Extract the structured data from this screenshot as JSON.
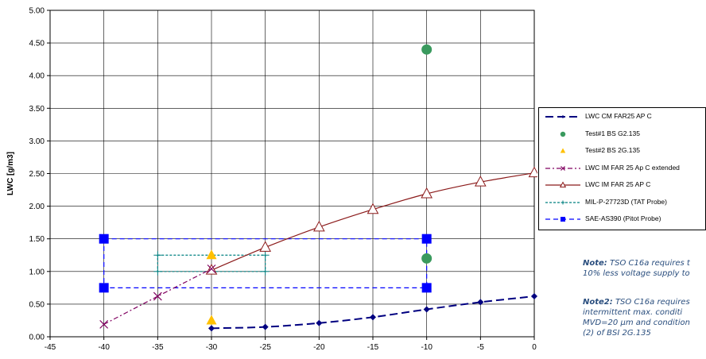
{
  "chart_data": {
    "type": "line",
    "title": "",
    "xlabel": "",
    "ylabel": "LWC [g/m3]",
    "xlim": [
      -45,
      0
    ],
    "ylim": [
      0,
      5
    ],
    "x_ticks": [
      "-45",
      "-40",
      "-35",
      "-30",
      "-25",
      "-20",
      "-15",
      "-10",
      "-5",
      "0"
    ],
    "y_ticks": [
      "0.00",
      "0.50",
      "1.00",
      "1.50",
      "2.00",
      "2.50",
      "3.00",
      "3.50",
      "4.00",
      "4.50",
      "5.00"
    ],
    "grid": true,
    "legend_position": "right",
    "series": [
      {
        "name": "LWC CM FAR25 AP C",
        "color": "#000080",
        "marker": "diamond",
        "dash": "10,5",
        "smooth": true,
        "points": [
          [
            -30,
            0.13
          ],
          [
            -25,
            0.15
          ],
          [
            -20,
            0.21
          ],
          [
            -15,
            0.3
          ],
          [
            -10,
            0.42
          ],
          [
            -5,
            0.53
          ],
          [
            0,
            0.62
          ]
        ]
      },
      {
        "name": "Test#1 BS G2.135",
        "color": "#3a9a5e",
        "marker": "circle",
        "line": false,
        "points": [
          [
            -10,
            4.4
          ],
          [
            -10,
            1.2
          ]
        ]
      },
      {
        "name": "Test#2 BS 2G.135",
        "color": "#ffc000",
        "marker": "triangle",
        "line": false,
        "points": [
          [
            -30,
            1.25
          ],
          [
            -30,
            0.25
          ]
        ]
      },
      {
        "name": "LWC IM FAR 25 Ap C extended",
        "color": "#800060",
        "marker": "x",
        "dash": "6,3,2,3",
        "points": [
          [
            -40,
            0.19
          ],
          [
            -35,
            0.62
          ],
          [
            -30,
            1.04
          ]
        ]
      },
      {
        "name": "LWC IM FAR 25 AP C",
        "color": "#8b1a1a",
        "marker": "triangle-open",
        "smooth": true,
        "points": [
          [
            -30,
            1.02
          ],
          [
            -25,
            1.37
          ],
          [
            -20,
            1.68
          ],
          [
            -15,
            1.95
          ],
          [
            -10,
            2.19
          ],
          [
            -5,
            2.37
          ],
          [
            0,
            2.51
          ]
        ]
      },
      {
        "name": "MIL-P-27723D (TAT Probe)",
        "color": "#008080",
        "marker": "plus",
        "dash": "3,2",
        "points": [
          [
            -35,
            1.25
          ],
          [
            -25,
            1.25
          ],
          [
            -25,
            1.0
          ],
          [
            -35,
            1.0
          ],
          [
            -35,
            1.25
          ]
        ]
      },
      {
        "name": "SAE-AS390 (Pitot Probe)",
        "color": "#0000ff",
        "marker": "square",
        "dash": "6,4",
        "points": [
          [
            -40,
            1.5
          ],
          [
            -10,
            1.5
          ],
          [
            -10,
            0.75
          ],
          [
            -40,
            0.75
          ],
          [
            -40,
            1.5
          ]
        ]
      }
    ]
  },
  "notes": {
    "note1_label": "Note:",
    "note1_line1": " TSO C16a requires t",
    "note1_line2": "10% less voltage supply to",
    "note2_label": "Note2:",
    "note2_line1": " TSO C16a requires",
    "note2_line2": "intermittent max. conditi",
    "note2_line3": "MVD=20 μm and condition",
    "note2_line4": "(2) of BSI 2G.135"
  }
}
